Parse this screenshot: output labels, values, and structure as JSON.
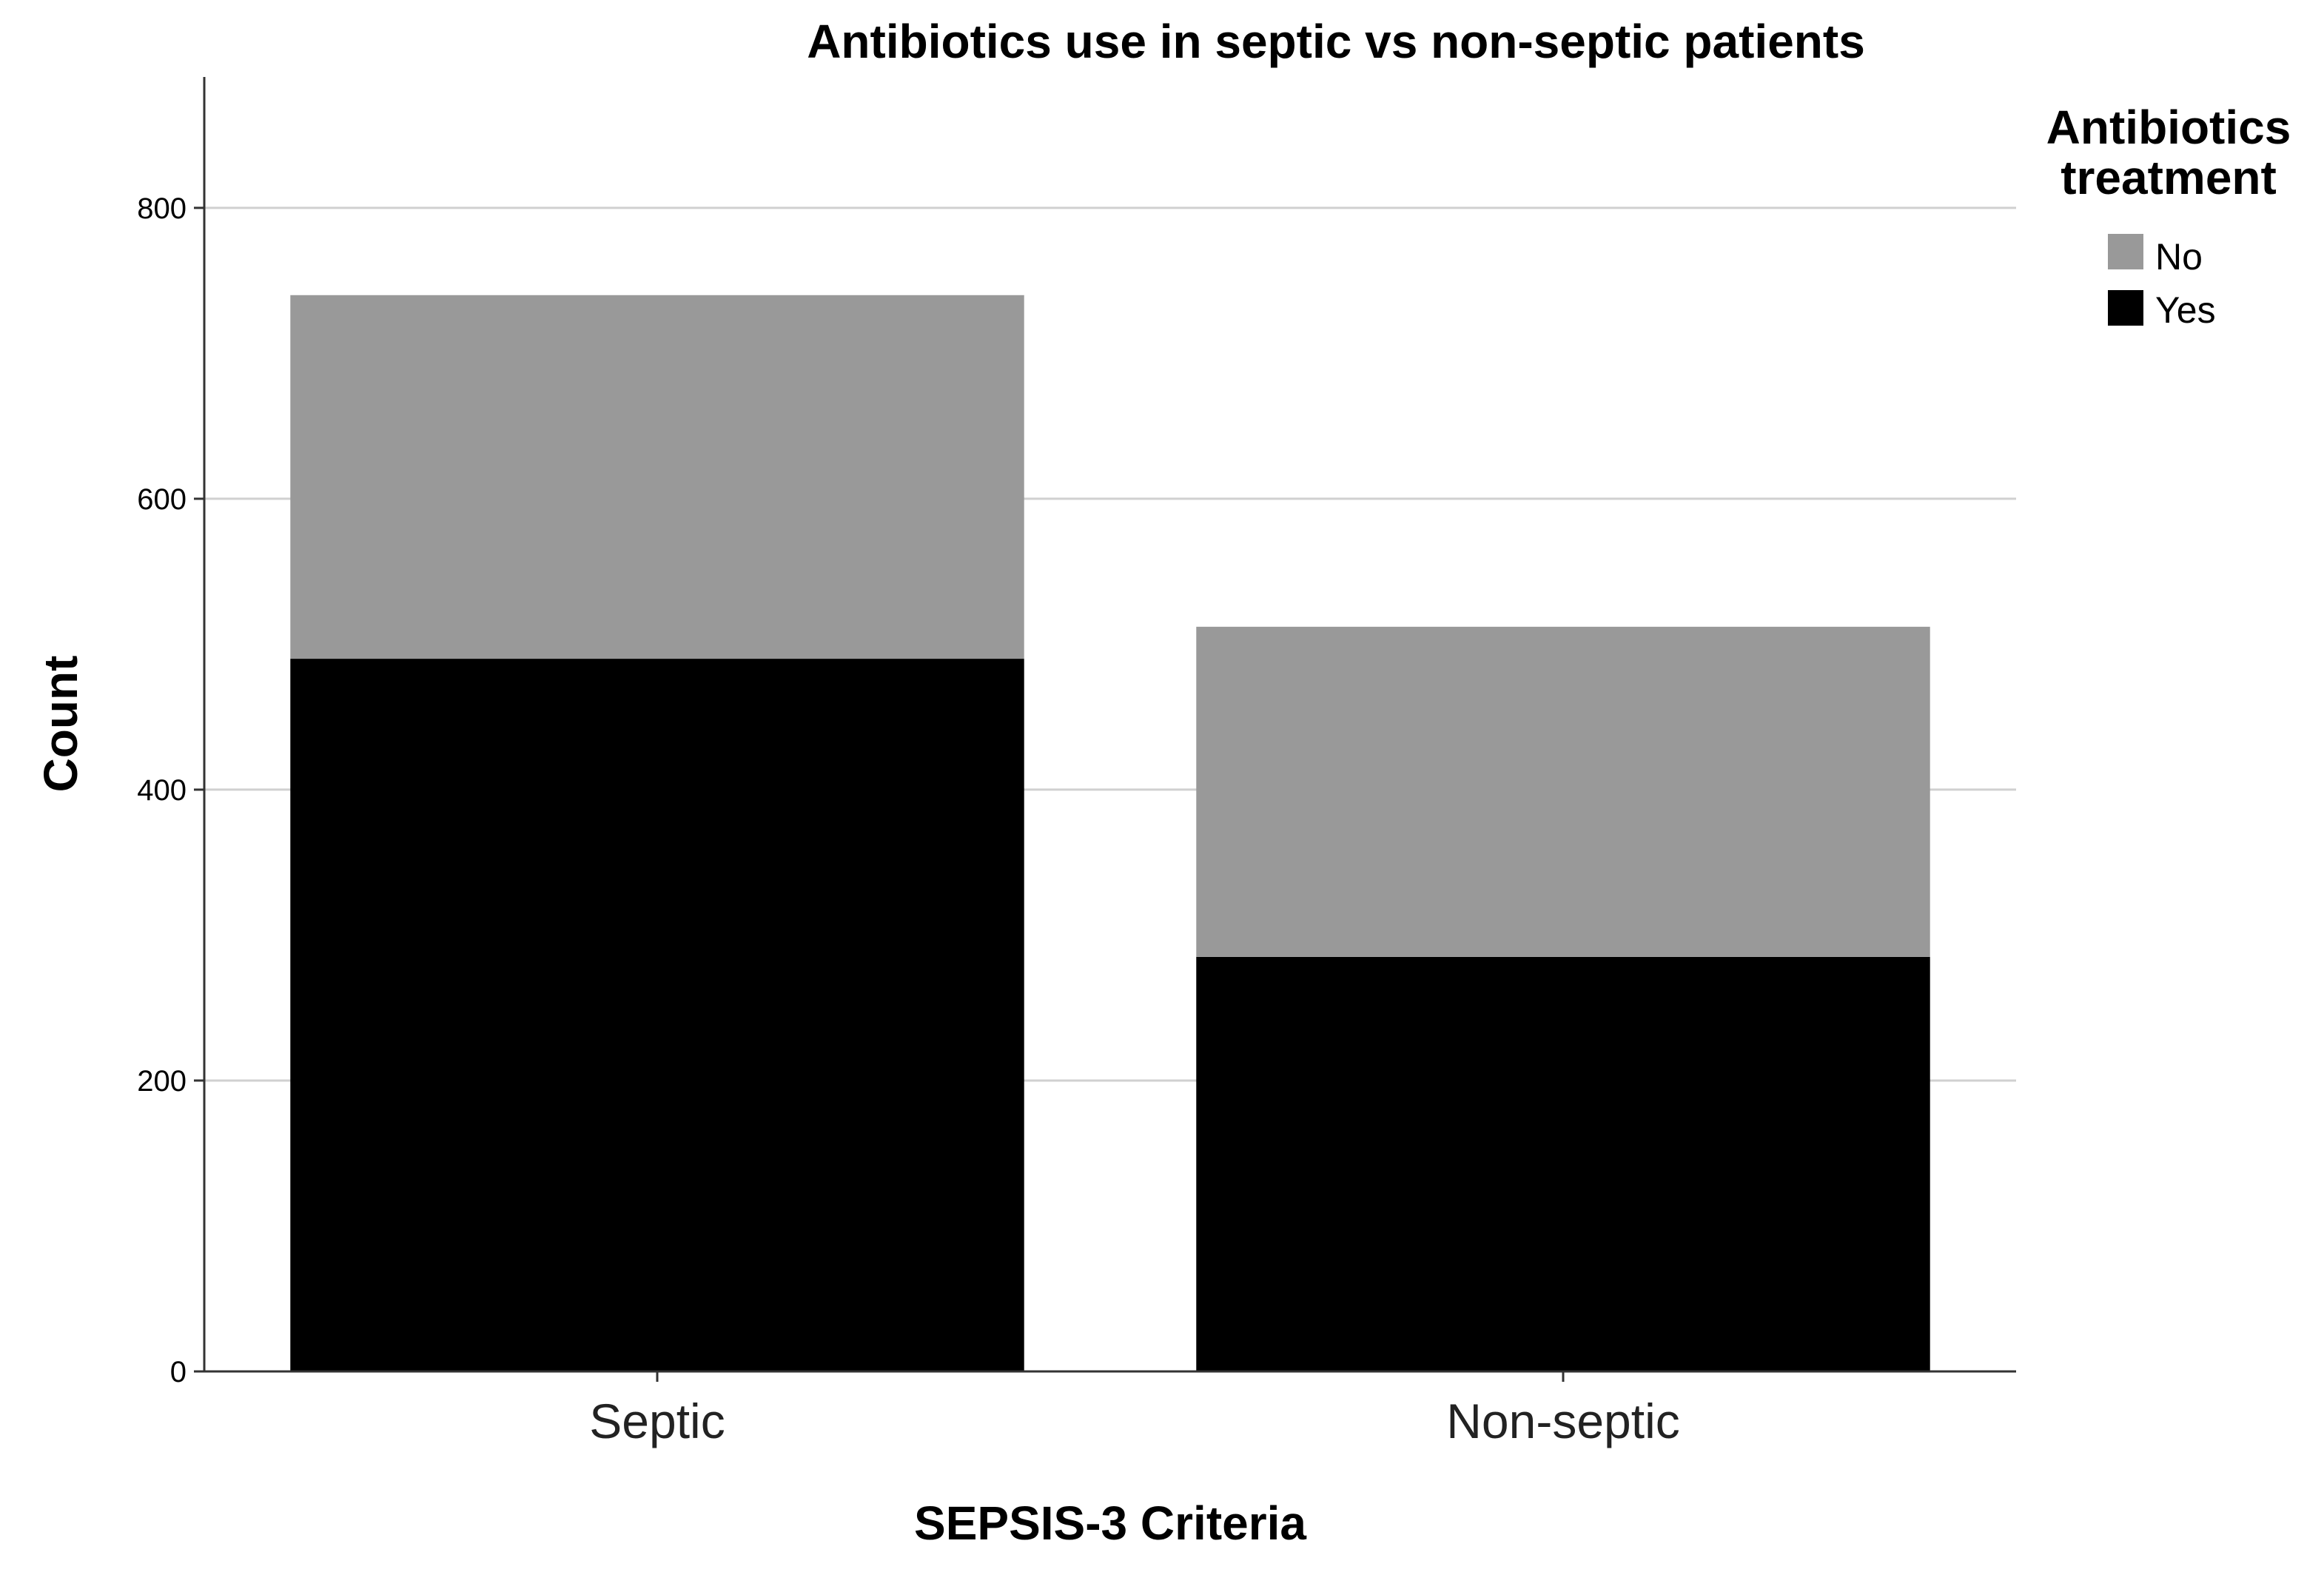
{
  "chart_data": {
    "type": "bar",
    "stacked": true,
    "title": "Antibiotics use in septic vs non-septic patients",
    "xlabel": "SEPSIS-3 Criteria",
    "ylabel": "Count",
    "ylim": [
      0,
      890
    ],
    "yticks": [
      "0",
      "200",
      "400",
      "600",
      "800"
    ],
    "grid": true,
    "categories": [
      "Septic",
      "Non-septic"
    ],
    "series": [
      {
        "name": "Yes",
        "values": [
          490,
          285
        ],
        "color": "#000000"
      },
      {
        "name": "No",
        "values": [
          250,
          227
        ],
        "color": "#999999"
      }
    ],
    "legend": {
      "title_line1": "Antibiotics",
      "title_line2": "treatment",
      "placement": "right",
      "entries": [
        "No",
        "Yes"
      ]
    }
  }
}
